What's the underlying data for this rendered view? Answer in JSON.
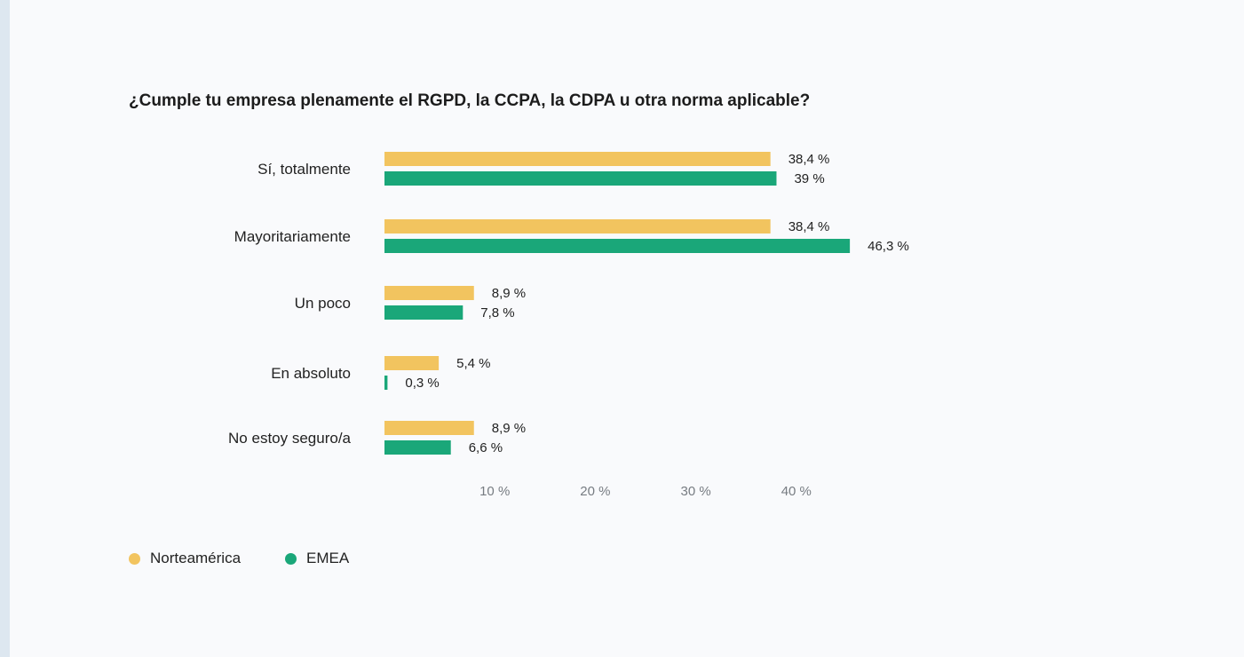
{
  "colors": {
    "north_america": "#f2c45f",
    "emea": "#1aa779"
  },
  "chart_data": {
    "type": "bar",
    "orientation": "horizontal",
    "title": "¿Cumple tu empresa plenamente el RGPD, la CCPA, la CDPA u otra norma aplicable?",
    "categories": [
      "Sí, totalmente",
      "Mayoritariamente",
      "Un poco",
      "En absoluto",
      "No estoy seguro/a"
    ],
    "series": [
      {
        "name": "Norteamérica",
        "values": [
          38.4,
          38.4,
          8.9,
          5.4,
          8.9
        ],
        "labels": [
          "38,4 %",
          "38,4 %",
          "8,9 %",
          "5,4 %",
          "8,9 %"
        ]
      },
      {
        "name": "EMEA",
        "values": [
          39,
          46.3,
          7.8,
          0.3,
          6.6
        ],
        "labels": [
          "39 %",
          "46,3 %",
          "7,8 %",
          "0,3 %",
          "6,6 %"
        ]
      }
    ],
    "xticks": [
      10,
      20,
      30,
      40
    ],
    "xtick_labels": [
      "10 %",
      "20 %",
      "30 %",
      "40 %"
    ],
    "xlim": [
      0,
      48
    ],
    "grid": false,
    "legend_position": "bottom-left"
  }
}
